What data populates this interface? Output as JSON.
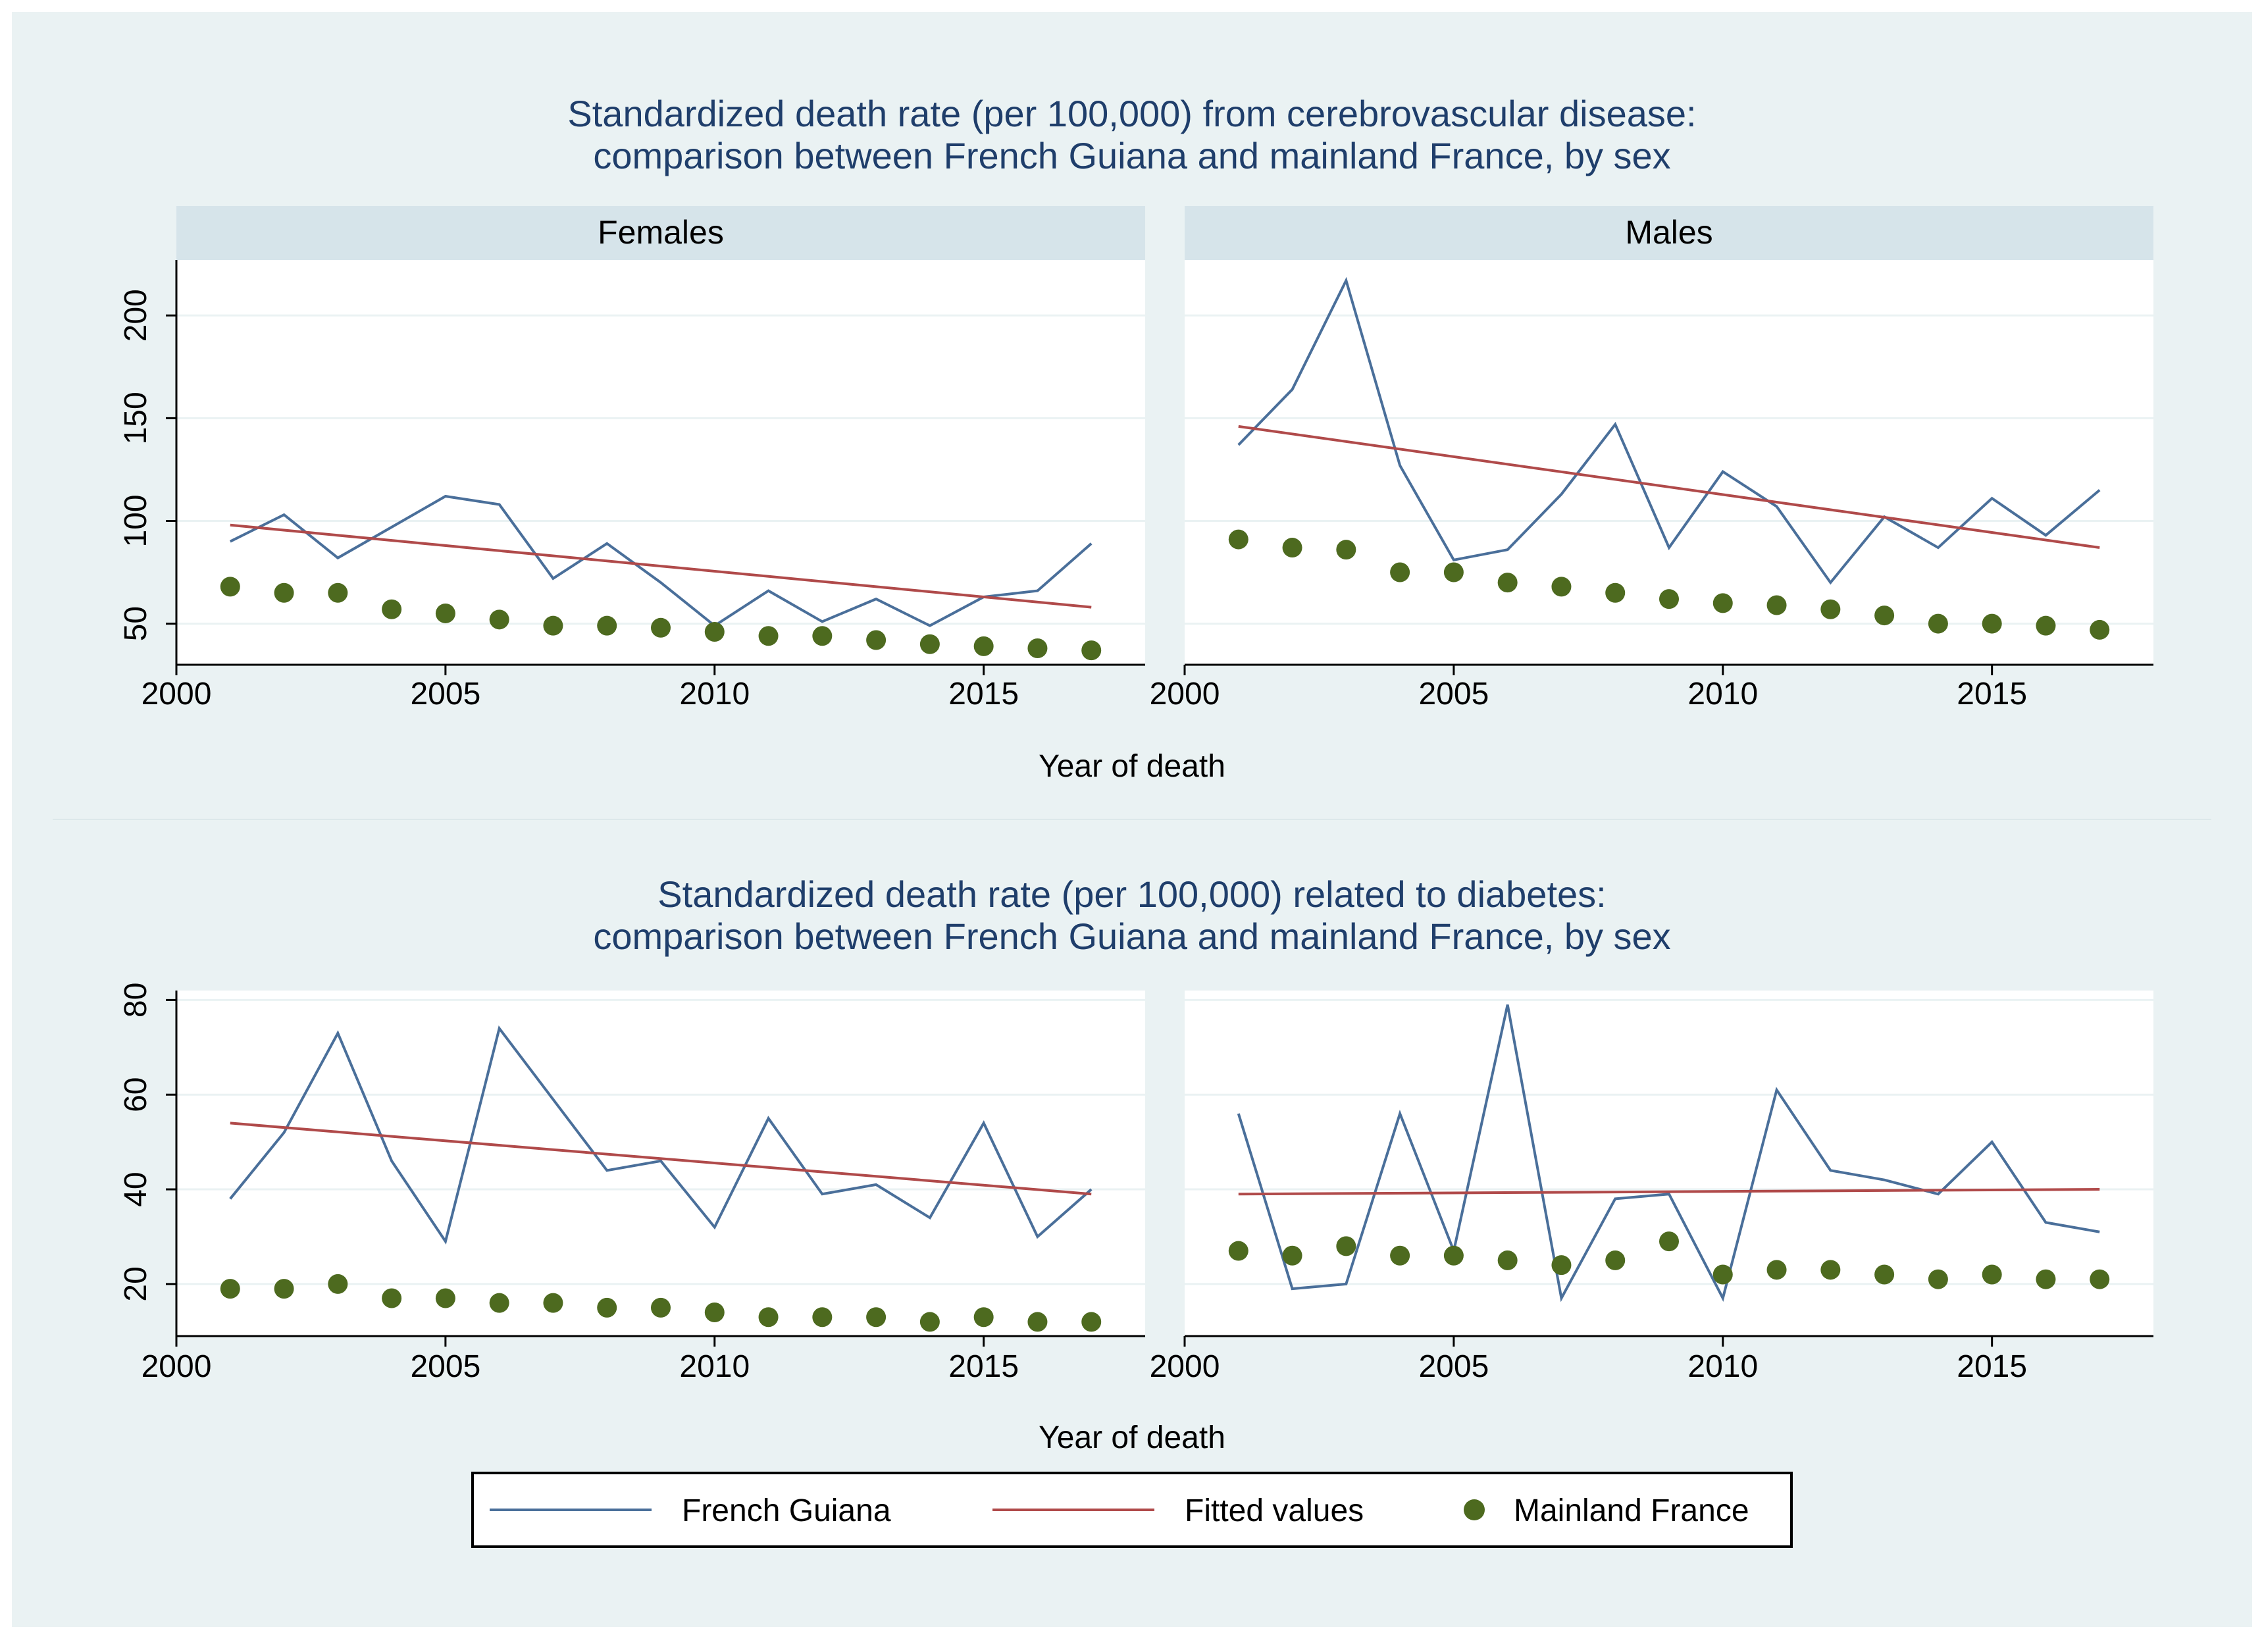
{
  "colors": {
    "background": "#eaf2f3",
    "plot_background": "#ffffff",
    "strip": "#d6e4ea",
    "french_guiana": "#4a6f9a",
    "fitted": "#b04a4a",
    "mainland": "#4d6a1f",
    "title": "#1f3e6b"
  },
  "legend": {
    "items": [
      {
        "label": "French Guiana",
        "kind": "line",
        "color": "#4a6f9a"
      },
      {
        "label": "Fitted values",
        "kind": "line",
        "color": "#b04a4a"
      },
      {
        "label": "Mainland France",
        "kind": "dot",
        "color": "#4d6a1f"
      }
    ]
  },
  "chart_data": [
    {
      "type": "line",
      "title": "Standardized death rate (per 100,000) from cerebrovascular disease: comparison between French Guiana and mainland France, by sex",
      "title_lines": [
        "Standardized death rate (per 100,000) from cerebrovascular disease:",
        "comparison between French Guiana and mainland France, by sex"
      ],
      "xlabel": "Year of death",
      "ylabel": "",
      "xlim": [
        2000,
        2018
      ],
      "ylim": [
        30,
        227
      ],
      "xticks": [
        2000,
        2005,
        2010,
        2015
      ],
      "yticks": [
        50,
        100,
        150,
        200
      ],
      "x": [
        2001,
        2002,
        2003,
        2004,
        2005,
        2006,
        2007,
        2008,
        2009,
        2010,
        2011,
        2012,
        2013,
        2014,
        2015,
        2016,
        2017
      ],
      "panels": [
        {
          "label": "Females",
          "series": [
            {
              "name": "French Guiana",
              "kind": "line",
              "values": [
                90,
                103,
                82,
                97,
                112,
                108,
                72,
                89,
                70,
                49,
                66,
                51,
                62,
                49,
                63,
                66,
                89
              ]
            },
            {
              "name": "Fitted values",
              "kind": "line",
              "values": [
                98,
                58
              ],
              "x": [
                2001,
                2017
              ]
            },
            {
              "name": "Mainland France",
              "kind": "scatter",
              "values": [
                68,
                65,
                65,
                57,
                55,
                52,
                49,
                49,
                48,
                46,
                44,
                44,
                42,
                40,
                39,
                38,
                37
              ]
            }
          ]
        },
        {
          "label": "Males",
          "series": [
            {
              "name": "French Guiana",
              "kind": "line",
              "values": [
                137,
                164,
                217,
                127,
                81,
                86,
                113,
                147,
                87,
                124,
                107,
                70,
                102,
                87,
                111,
                93,
                115
              ]
            },
            {
              "name": "Fitted values",
              "kind": "line",
              "values": [
                146,
                87
              ],
              "x": [
                2001,
                2017
              ]
            },
            {
              "name": "Mainland France",
              "kind": "scatter",
              "values": [
                91,
                87,
                86,
                75,
                75,
                70,
                68,
                65,
                62,
                60,
                59,
                57,
                54,
                50,
                50,
                49,
                47
              ]
            }
          ]
        }
      ]
    },
    {
      "type": "line",
      "title": "Standardized death rate (per 100,000) related to diabetes: comparison between French Guiana and mainland France, by sex",
      "title_lines": [
        "Standardized death rate (per 100,000) related to diabetes:",
        "comparison between French Guiana and mainland France, by sex"
      ],
      "xlabel": "Year of death",
      "ylabel": "",
      "xlim": [
        2000,
        2018
      ],
      "ylim": [
        9,
        82
      ],
      "xticks": [
        2000,
        2005,
        2010,
        2015
      ],
      "yticks": [
        20,
        40,
        60,
        80
      ],
      "x": [
        2001,
        2002,
        2003,
        2004,
        2005,
        2006,
        2007,
        2008,
        2009,
        2010,
        2011,
        2012,
        2013,
        2014,
        2015,
        2016,
        2017
      ],
      "panels": [
        {
          "label": "Females",
          "series": [
            {
              "name": "French Guiana",
              "kind": "line",
              "values": [
                38,
                52,
                73,
                46,
                29,
                74,
                59,
                44,
                46,
                32,
                55,
                39,
                41,
                34,
                54,
                30,
                40
              ]
            },
            {
              "name": "Fitted values",
              "kind": "line",
              "values": [
                54,
                39
              ],
              "x": [
                2001,
                2017
              ]
            },
            {
              "name": "Mainland France",
              "kind": "scatter",
              "values": [
                19,
                19,
                20,
                17,
                17,
                16,
                16,
                15,
                15,
                14,
                13,
                13,
                13,
                12,
                13,
                12,
                12
              ]
            }
          ]
        },
        {
          "label": "Males",
          "series": [
            {
              "name": "French Guiana",
              "kind": "line",
              "values": [
                56,
                19,
                20,
                56,
                27,
                79,
                17,
                38,
                39,
                17,
                61,
                44,
                42,
                39,
                50,
                33,
                31
              ]
            },
            {
              "name": "Fitted values",
              "kind": "line",
              "values": [
                39,
                40
              ],
              "x": [
                2001,
                2017
              ]
            },
            {
              "name": "Mainland France",
              "kind": "scatter",
              "values": [
                27,
                26,
                28,
                26,
                26,
                25,
                24,
                25,
                29,
                22,
                23,
                23,
                22,
                21,
                22,
                21,
                21
              ]
            }
          ]
        }
      ]
    }
  ]
}
